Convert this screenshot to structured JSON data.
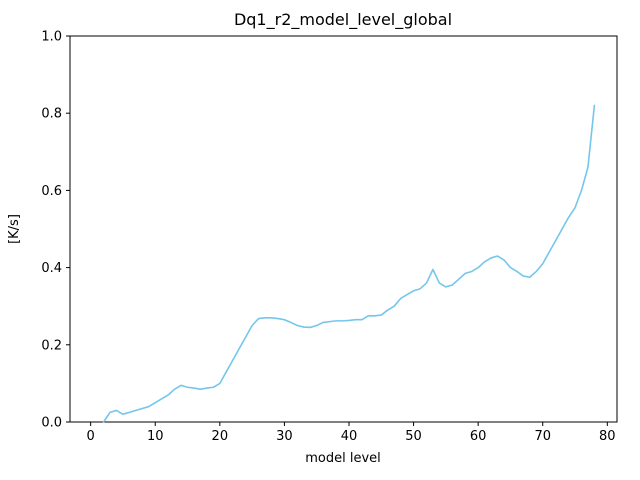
{
  "chart_data": {
    "type": "line",
    "title": "Dq1_r2_model_level_global",
    "xlabel": "model level",
    "ylabel": "[K/s]",
    "xlim": [
      -3.2,
      81.5
    ],
    "ylim": [
      0,
      1
    ],
    "xticks": [
      0,
      10,
      20,
      30,
      40,
      50,
      60,
      70,
      80
    ],
    "xtick_labels": [
      "0",
      "10",
      "20",
      "30",
      "40",
      "50",
      "60",
      "70",
      "80"
    ],
    "yticks": [
      0.0,
      0.2,
      0.4,
      0.6,
      0.8,
      1.0
    ],
    "ytick_labels": [
      "0.0",
      "0.2",
      "0.4",
      "0.6",
      "0.8",
      "1.0"
    ],
    "grid": false,
    "legend": "none",
    "line_color": "#74c6ec",
    "line_width": 1.6,
    "series": [
      {
        "name": "Dq1_r2_model_level_global",
        "x": [
          2,
          3,
          4,
          5,
          6,
          7,
          8,
          9,
          10,
          11,
          12,
          13,
          14,
          15,
          16,
          17,
          18,
          19,
          20,
          21,
          22,
          23,
          24,
          25,
          26,
          27,
          28,
          29,
          30,
          31,
          32,
          33,
          34,
          35,
          36,
          37,
          38,
          39,
          40,
          41,
          42,
          43,
          44,
          45,
          46,
          47,
          48,
          49,
          50,
          51,
          52,
          53,
          54,
          55,
          56,
          57,
          58,
          59,
          60,
          61,
          62,
          63,
          64,
          65,
          66,
          67,
          68,
          69,
          70,
          71,
          72,
          73,
          74,
          75,
          76,
          77,
          78
        ],
        "y": [
          0.0,
          0.025,
          0.03,
          0.02,
          0.025,
          0.03,
          0.035,
          0.04,
          0.05,
          0.06,
          0.07,
          0.085,
          0.095,
          0.09,
          0.088,
          0.085,
          0.088,
          0.09,
          0.1,
          0.13,
          0.16,
          0.19,
          0.22,
          0.25,
          0.268,
          0.27,
          0.27,
          0.268,
          0.265,
          0.258,
          0.25,
          0.246,
          0.245,
          0.25,
          0.258,
          0.26,
          0.262,
          0.262,
          0.263,
          0.265,
          0.265,
          0.275,
          0.275,
          0.277,
          0.29,
          0.3,
          0.32,
          0.33,
          0.34,
          0.345,
          0.36,
          0.395,
          0.36,
          0.35,
          0.355,
          0.37,
          0.385,
          0.39,
          0.4,
          0.415,
          0.425,
          0.43,
          0.42,
          0.4,
          0.39,
          0.378,
          0.375,
          0.39,
          0.41,
          0.44,
          0.47,
          0.5,
          0.53,
          0.555,
          0.6,
          0.66,
          0.82
        ]
      }
    ]
  }
}
